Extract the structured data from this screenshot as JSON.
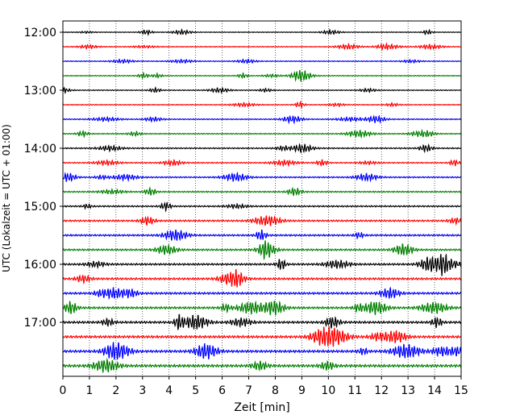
{
  "chart_data": {
    "type": "line",
    "title": "",
    "xlabel": "Zeit  [min]",
    "ylabel": "UTC (Lokalzeit = UTC + 01:00)",
    "x_range": [
      0,
      15
    ],
    "x_ticks": [
      "0",
      "1",
      "2",
      "3",
      "4",
      "5",
      "6",
      "7",
      "8",
      "9",
      "10",
      "11",
      "12",
      "13",
      "14",
      "15"
    ],
    "y_ticks": [
      "12:00",
      "13:00",
      "14:00",
      "15:00",
      "16:00",
      "17:00"
    ],
    "grid": "vertical dotted lines at each minute",
    "trace_interval_min": 15,
    "trace_colors": [
      "#000000",
      "#ff0000",
      "#0000ff",
      "#008000"
    ],
    "traces": [
      {
        "start": "12:00",
        "amplitude": 0.12
      },
      {
        "start": "12:15",
        "amplitude": 0.14
      },
      {
        "start": "12:30",
        "amplitude": 0.15
      },
      {
        "start": "12:45",
        "amplitude": 0.14
      },
      {
        "start": "13:00",
        "amplitude": 0.15
      },
      {
        "start": "13:15",
        "amplitude": 0.16
      },
      {
        "start": "13:30",
        "amplitude": 0.18
      },
      {
        "start": "13:45",
        "amplitude": 0.18
      },
      {
        "start": "14:00",
        "amplitude": 0.22
      },
      {
        "start": "14:15",
        "amplitude": 0.2
      },
      {
        "start": "14:30",
        "amplitude": 0.24
      },
      {
        "start": "14:45",
        "amplitude": 0.24
      },
      {
        "start": "15:00",
        "amplitude": 0.26
      },
      {
        "start": "15:15",
        "amplitude": 0.3
      },
      {
        "start": "15:30",
        "amplitude": 0.32
      },
      {
        "start": "15:45",
        "amplitude": 0.32
      },
      {
        "start": "16:00",
        "amplitude": 0.34
      },
      {
        "start": "16:15",
        "amplitude": 0.36
      },
      {
        "start": "16:30",
        "amplitude": 0.38
      },
      {
        "start": "16:45",
        "amplitude": 0.38
      },
      {
        "start": "17:00",
        "amplitude": 0.4
      },
      {
        "start": "17:15",
        "amplitude": 0.42
      },
      {
        "start": "17:30",
        "amplitude": 0.44
      },
      {
        "start": "17:45",
        "amplitude": 0.46
      }
    ]
  }
}
